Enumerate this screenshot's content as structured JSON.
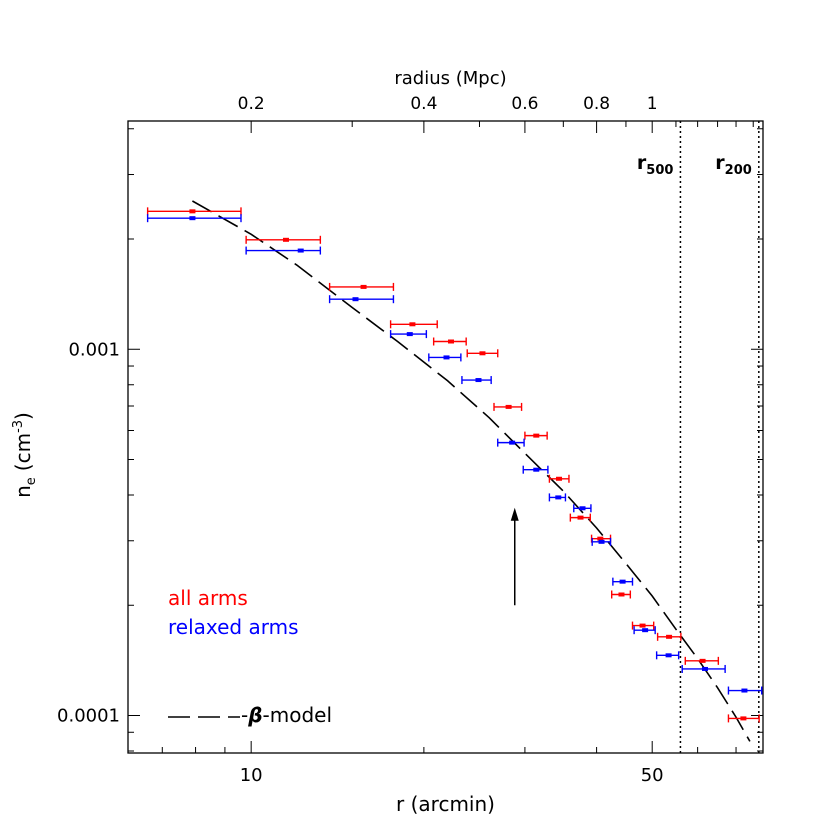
{
  "chart_data": {
    "type": "scatter",
    "xscale": "log",
    "yscale": "log",
    "xlabel": "r (arcmin)",
    "ylabel": "n",
    "ylabel_sub": "e",
    "ylabel_unit_prefix": "(cm",
    "ylabel_unit_exp": "-3",
    "ylabel_unit_suffix": ")",
    "xlim": [
      6.1,
      78
    ],
    "ylim": [
      7.9e-05,
      0.0042
    ],
    "xticks": [
      {
        "value": 10,
        "label": "10"
      },
      {
        "value": 50,
        "label": "50"
      }
    ],
    "yticks": [
      {
        "value": 0.0001,
        "label": "0.0001"
      },
      {
        "value": 0.001,
        "label": "0.001"
      }
    ],
    "top_axis": {
      "label": "radius (Mpc)",
      "mpc_per_arcmin": 0.02,
      "ticks": [
        {
          "value": 0.2,
          "label": "0.2"
        },
        {
          "value": 0.4,
          "label": "0.4"
        },
        {
          "value": 0.6,
          "label": "0.6"
        },
        {
          "value": 0.8,
          "label": "0.8"
        },
        {
          "value": 1.0,
          "label": "1"
        }
      ]
    },
    "vlines": [
      {
        "x": 56.0,
        "label": "r",
        "sub": "500"
      },
      {
        "x": 76.7,
        "label": "r",
        "sub": "200"
      }
    ],
    "arrow": {
      "x": 28.8,
      "y_tail": 0.0002,
      "y_head": 0.00036
    },
    "series": [
      {
        "name": "all arms",
        "color": "#ff0000",
        "points": [
          {
            "x": 7.9,
            "xlo": 6.6,
            "xhi": 9.6,
            "y": 0.00238
          },
          {
            "x": 11.5,
            "xlo": 9.8,
            "xhi": 13.2,
            "y": 0.00199
          },
          {
            "x": 15.7,
            "xlo": 13.7,
            "xhi": 17.7,
            "y": 0.00148
          },
          {
            "x": 19.1,
            "xlo": 17.5,
            "xhi": 21.1,
            "y": 0.00117
          },
          {
            "x": 22.3,
            "xlo": 20.8,
            "xhi": 23.7,
            "y": 0.00105
          },
          {
            "x": 25.3,
            "xlo": 23.8,
            "xhi": 26.9,
            "y": 0.000975
          },
          {
            "x": 28.1,
            "xlo": 26.5,
            "xhi": 29.6,
            "y": 0.000696
          },
          {
            "x": 31.4,
            "xlo": 30.0,
            "xhi": 32.8,
            "y": 0.000581
          },
          {
            "x": 34.4,
            "xlo": 33.1,
            "xhi": 35.8,
            "y": 0.000443
          },
          {
            "x": 37.5,
            "xlo": 36.0,
            "xhi": 39.0,
            "y": 0.000347
          },
          {
            "x": 40.6,
            "xlo": 39.2,
            "xhi": 42.3,
            "y": 0.000304
          },
          {
            "x": 44.2,
            "xlo": 42.5,
            "xhi": 45.8,
            "y": 0.000214
          },
          {
            "x": 48.1,
            "xlo": 46.2,
            "xhi": 50.3,
            "y": 0.000176
          },
          {
            "x": 53.5,
            "xlo": 51.1,
            "xhi": 56.1,
            "y": 0.000164
          },
          {
            "x": 61.2,
            "xlo": 57.1,
            "xhi": 65.2,
            "y": 0.000141
          },
          {
            "x": 72.1,
            "xlo": 67.9,
            "xhi": 76.8,
            "y": 9.82e-05
          }
        ]
      },
      {
        "name": "relaxed arms",
        "color": "#0000ff",
        "points": [
          {
            "x": 7.9,
            "xlo": 6.6,
            "xhi": 9.6,
            "y": 0.00228
          },
          {
            "x": 12.2,
            "xlo": 9.8,
            "xhi": 13.2,
            "y": 0.00186
          },
          {
            "x": 15.2,
            "xlo": 13.7,
            "xhi": 17.7,
            "y": 0.00137
          },
          {
            "x": 18.9,
            "xlo": 17.5,
            "xhi": 20.2,
            "y": 0.0011
          },
          {
            "x": 21.9,
            "xlo": 20.4,
            "xhi": 23.2,
            "y": 0.00095
          },
          {
            "x": 24.9,
            "xlo": 23.3,
            "xhi": 26.2,
            "y": 0.000824
          },
          {
            "x": 28.5,
            "xlo": 26.9,
            "xhi": 29.9,
            "y": 0.000556
          },
          {
            "x": 31.4,
            "xlo": 29.8,
            "xhi": 32.9,
            "y": 0.000469
          },
          {
            "x": 34.3,
            "xlo": 33.1,
            "xhi": 35.3,
            "y": 0.000394
          },
          {
            "x": 37.8,
            "xlo": 36.5,
            "xhi": 39.1,
            "y": 0.000368
          },
          {
            "x": 40.8,
            "xlo": 39.3,
            "xhi": 42.3,
            "y": 0.000298
          },
          {
            "x": 44.4,
            "xlo": 42.7,
            "xhi": 46.2,
            "y": 0.000232
          },
          {
            "x": 48.6,
            "xlo": 46.5,
            "xhi": 50.6,
            "y": 0.000171
          },
          {
            "x": 53.4,
            "xlo": 50.9,
            "xhi": 55.6,
            "y": 0.000146
          },
          {
            "x": 61.8,
            "xlo": 56.4,
            "xhi": 67.0,
            "y": 0.000134
          },
          {
            "x": 72.4,
            "xlo": 67.9,
            "xhi": 77.6,
            "y": 0.000117
          }
        ]
      }
    ],
    "model": {
      "name": "β-model",
      "legend_text": "-model",
      "legend_symbol": "β",
      "legend_prefix": "-",
      "color": "#000000",
      "points": [
        [
          7.9,
          0.00254
        ],
        [
          10.0,
          0.00206
        ],
        [
          12.0,
          0.0017
        ],
        [
          15.0,
          0.0013
        ],
        [
          18.0,
          0.00105
        ],
        [
          22.0,
          0.00082
        ],
        [
          26.0,
          0.00065
        ],
        [
          30.0,
          0.00052
        ],
        [
          35.0,
          0.00041
        ],
        [
          40.0,
          0.000325
        ],
        [
          45.0,
          0.00026
        ],
        [
          50.0,
          0.000212
        ],
        [
          55.0,
          0.000172
        ],
        [
          60.0,
          0.000143
        ],
        [
          65.0,
          0.000119
        ],
        [
          70.0,
          9.9e-05
        ],
        [
          74.0,
          8.5e-05
        ]
      ]
    },
    "legend_position": "bottom-left"
  }
}
